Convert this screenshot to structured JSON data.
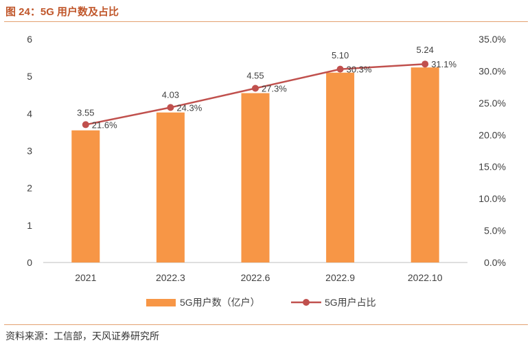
{
  "figure": {
    "title": "图 24：5G 用户数及占比",
    "source": "资料来源：工信部，天风证券研究所"
  },
  "colors": {
    "bar": "#F79646",
    "line": "#C0504D",
    "title": "#C0562A",
    "rule": "#E3A06F"
  },
  "chart_data": {
    "type": "bar",
    "categories": [
      "2021",
      "2022.3",
      "2022.6",
      "2022.9",
      "2022.10"
    ],
    "series": [
      {
        "name": "5G用户数（亿户）",
        "type": "bar",
        "axis": "left",
        "values": [
          3.55,
          4.03,
          4.55,
          5.1,
          5.24
        ],
        "labels": [
          "3.55",
          "4.03",
          "4.55",
          "5.10",
          "5.24"
        ]
      },
      {
        "name": "5G用户占比",
        "type": "line",
        "axis": "right",
        "values": [
          21.6,
          24.3,
          27.3,
          30.3,
          31.1
        ],
        "labels": [
          "21.6%",
          "24.3%",
          "27.3%",
          "30.3%",
          "31.1%"
        ]
      }
    ],
    "y_left": {
      "min": 0,
      "max": 6,
      "ticks": [
        "0",
        "1",
        "2",
        "3",
        "4",
        "5",
        "6"
      ]
    },
    "y_right": {
      "min": 0,
      "max": 35,
      "ticks": [
        "0.0%",
        "5.0%",
        "10.0%",
        "15.0%",
        "20.0%",
        "25.0%",
        "30.0%",
        "35.0%"
      ]
    },
    "legend": "bottom",
    "grid": false
  }
}
